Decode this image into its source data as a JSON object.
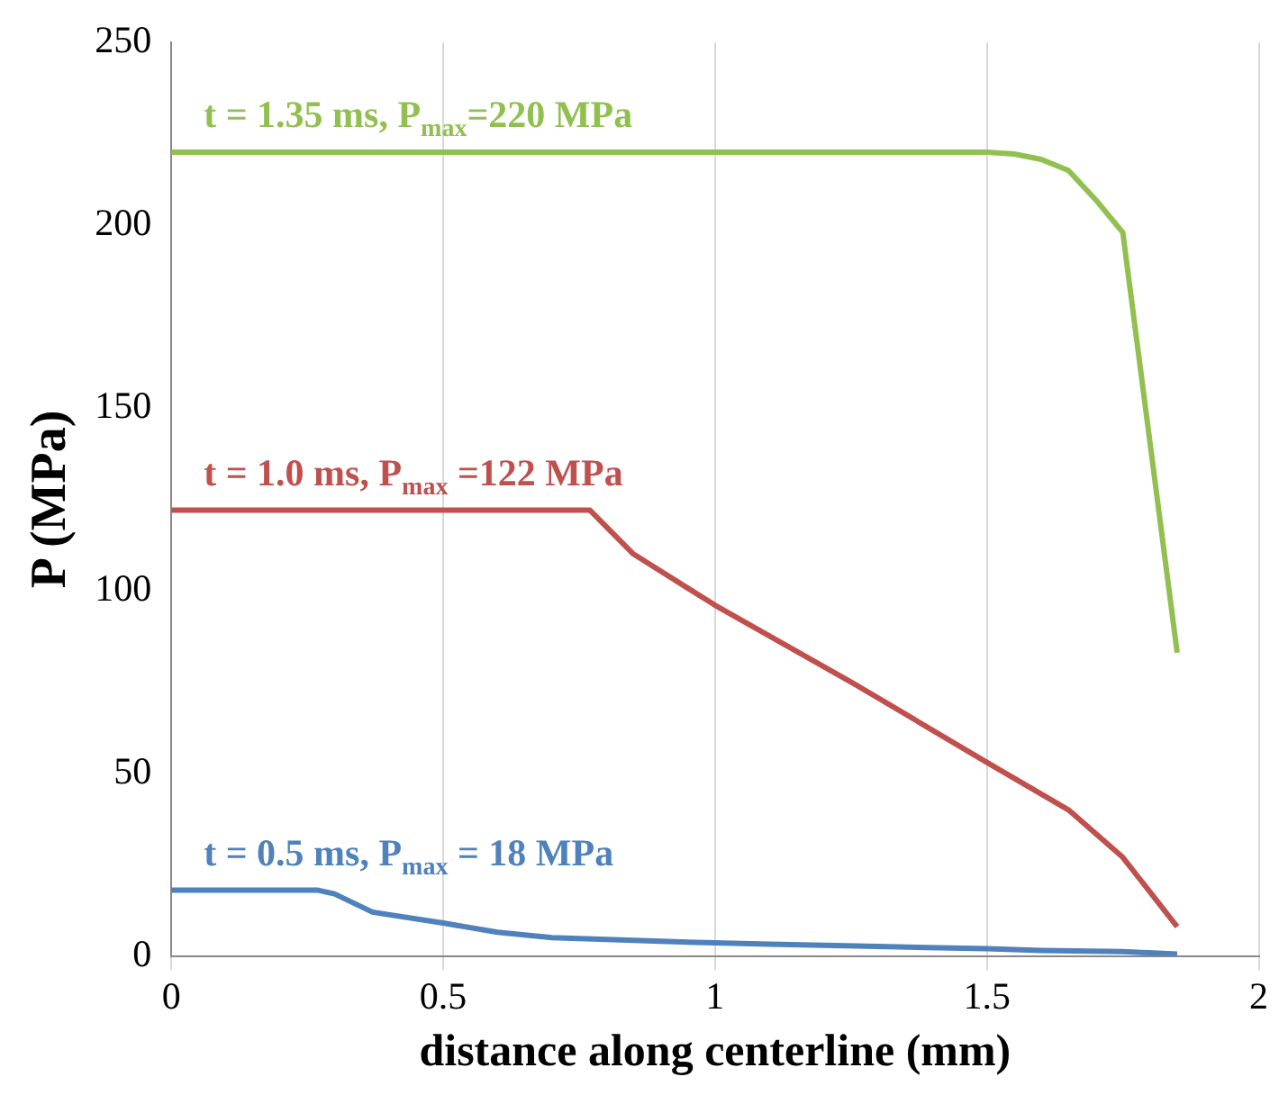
{
  "chart_data": {
    "type": "line",
    "xlabel": "distance along centerline (mm)",
    "ylabel": "P (MPa)",
    "xlim": [
      0,
      2
    ],
    "xticks": [
      0,
      0.5,
      1,
      1.5,
      2
    ],
    "ylim": [
      0,
      250
    ],
    "yticks": [
      0,
      50,
      100,
      150,
      200,
      250
    ],
    "grid": "x",
    "legend": false,
    "marker": "none",
    "line_style": "solid",
    "series": [
      {
        "name": "t = 1.35 ms, P$_{max}$=220 MPa",
        "color": "#92c050",
        "x": [
          0,
          1.5,
          1.55,
          1.6,
          1.65,
          1.7,
          1.75,
          1.85
        ],
        "values": [
          220,
          220,
          219.5,
          218,
          215,
          207,
          198,
          83
        ]
      },
      {
        "name": "t = 1.0 ms, P$_{max}$ =122 MPa",
        "color": "#c0504d",
        "x": [
          0,
          0.77,
          0.85,
          1.0,
          1.25,
          1.5,
          1.65,
          1.75,
          1.85
        ],
        "values": [
          122,
          122,
          110,
          96,
          75,
          53,
          40,
          27,
          8
        ]
      },
      {
        "name": "t = 0.5 ms, P$_{max}$ = 18 MPa",
        "color": "#4f81bd",
        "x": [
          0,
          0.27,
          0.3,
          0.37,
          0.5,
          0.6,
          0.7,
          0.9,
          1.1,
          1.3,
          1.5,
          1.6,
          1.75,
          1.85
        ],
        "values": [
          18,
          18,
          17,
          12,
          9,
          6.5,
          5,
          4,
          3.2,
          2.6,
          2,
          1.5,
          1.2,
          0.5
        ]
      }
    ]
  }
}
